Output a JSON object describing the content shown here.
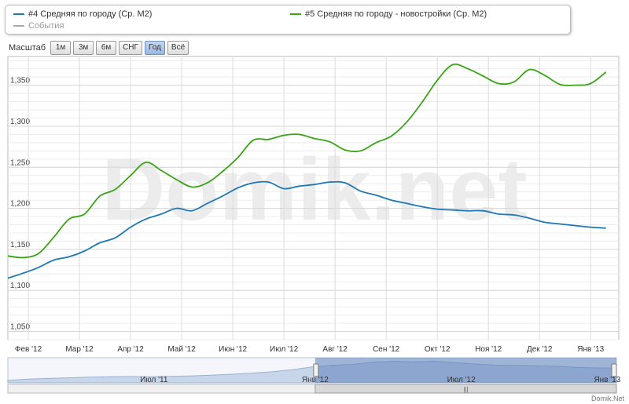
{
  "legend": {
    "items": [
      {
        "label": "#4 Средняя по городу (Ср. М2)",
        "color": "#1f77b4"
      },
      {
        "label": "#5 Средняя по городу - новостройки (Ср. М2)",
        "color": "#3aa317"
      },
      {
        "label": "События",
        "color": "#aaaaaa"
      }
    ]
  },
  "zoom": {
    "label": "Масштаб",
    "buttons": [
      "1м",
      "3м",
      "6м",
      "СНГ",
      "Год",
      "Всё"
    ],
    "active": "Год"
  },
  "watermark": "Domik.net",
  "footer": "Domik.Net",
  "chart_data": {
    "type": "line",
    "x_ticks": [
      "Фев '12",
      "Мар '12",
      "Апр '12",
      "Май '12",
      "Июн '12",
      "Июл '12",
      "Авг '12",
      "Сен '12",
      "Окт '12",
      "Ноя '12",
      "Дек '12",
      "Янв '13"
    ],
    "y_ticks": [
      "1,050",
      "1,100",
      "1,150",
      "1,200",
      "1,250",
      "1,300",
      "1,350"
    ],
    "ylim": [
      1040,
      1385
    ],
    "grid": true,
    "x": [
      0,
      0.3,
      0.6,
      0.9,
      1.2,
      1.5,
      1.8,
      2.1,
      2.4,
      2.7,
      3.0,
      3.3,
      3.6,
      3.9,
      4.2,
      4.5,
      4.8,
      5.1,
      5.4,
      5.7,
      6.0,
      6.3,
      6.6,
      6.9,
      7.2,
      7.5,
      7.8,
      8.1,
      8.4,
      8.7,
      9.0,
      9.3,
      9.6,
      9.9,
      10.2,
      10.5,
      10.8,
      11.1,
      11.4,
      11.7
    ],
    "series": [
      {
        "name": "#4 Средняя по городу (Ср. М2)",
        "color": "#1f77b4",
        "values": [
          1115,
          1121,
          1128,
          1137,
          1141,
          1148,
          1158,
          1164,
          1177,
          1187,
          1193,
          1200,
          1197,
          1206,
          1215,
          1225,
          1231,
          1232,
          1224,
          1227,
          1229,
          1232,
          1231,
          1221,
          1216,
          1210,
          1206,
          1202,
          1199,
          1198,
          1197,
          1197,
          1193,
          1192,
          1188,
          1183,
          1181,
          1179,
          1177,
          1176
        ]
      },
      {
        "name": "#5 Средняя по городу - новостройки (Ср. М2)",
        "color": "#3aa317",
        "values": [
          1142,
          1140,
          1145,
          1165,
          1187,
          1193,
          1215,
          1223,
          1240,
          1256,
          1246,
          1235,
          1226,
          1231,
          1245,
          1262,
          1283,
          1284,
          1289,
          1290,
          1285,
          1281,
          1271,
          1270,
          1280,
          1288,
          1305,
          1329,
          1356,
          1375,
          1370,
          1361,
          1352,
          1354,
          1369,
          1362,
          1351,
          1350,
          1352,
          1366
        ]
      }
    ]
  },
  "navigator": {
    "labels": [
      "Июл '11",
      "Янв '12",
      "Июл '12",
      "Янв '13"
    ],
    "values": [
      1080,
      1090,
      1095,
      1100,
      1105,
      1108,
      1110,
      1108,
      1112,
      1115,
      1121,
      1128,
      1137,
      1148,
      1164,
      1187,
      1200,
      1206,
      1225,
      1232,
      1227,
      1232,
      1221,
      1210,
      1202,
      1198,
      1197,
      1192,
      1183,
      1179,
      1176
    ],
    "selection": [
      0.505,
      1.0
    ]
  }
}
